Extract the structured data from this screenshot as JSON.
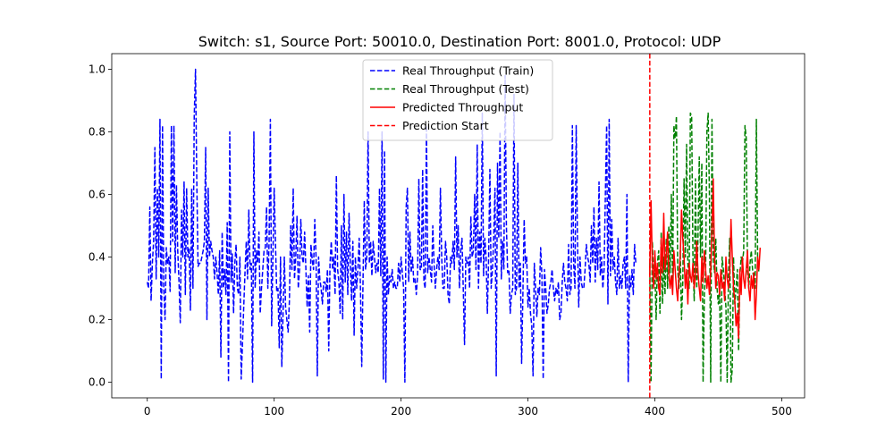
{
  "chart_data": {
    "type": "line",
    "title": "Switch: s1, Source Port: 50010.0, Destination Port: 8001.0, Protocol: UDP",
    "xlabel": "",
    "ylabel": "",
    "xlim": [
      -28,
      518
    ],
    "ylim": [
      -0.05,
      1.05
    ],
    "x_ticks": [
      0,
      100,
      200,
      300,
      400,
      500
    ],
    "y_ticks": [
      0.0,
      0.2,
      0.4,
      0.6,
      0.8,
      1.0
    ],
    "x_tick_labels": [
      "0",
      "100",
      "200",
      "300",
      "400",
      "500"
    ],
    "y_tick_labels": [
      "0.0",
      "0.2",
      "0.4",
      "0.6",
      "0.8",
      "1.0"
    ],
    "grid": false,
    "legend_position": "top-center",
    "vline": {
      "name": "Prediction Start",
      "x": 396,
      "color": "#ff0000",
      "dash": "dashed"
    },
    "series": [
      {
        "name": "Real Throughput (Train)",
        "color": "#0000ff",
        "dash": "dashed",
        "x_start": 0,
        "values": [
          0.32,
          0.3,
          0.56,
          0.26,
          0.38,
          0.45,
          0.75,
          0.33,
          0.62,
          0.4,
          0.84,
          0.01,
          0.82,
          0.3,
          0.2,
          0.43,
          0.38,
          0.4,
          0.29,
          0.82,
          0.45,
          0.82,
          0.35,
          0.63,
          0.42,
          0.32,
          0.19,
          0.55,
          0.4,
          0.64,
          0.28,
          0.62,
          0.4,
          0.43,
          0.23,
          0.62,
          0.3,
          0.85,
          1.0,
          0.65,
          0.37,
          0.38,
          0.38,
          0.4,
          0.42,
          0.45,
          0.75,
          0.2,
          0.62,
          0.4,
          0.45,
          0.42,
          0.4,
          0.33,
          0.4,
          0.35,
          0.28,
          0.42,
          0.08,
          0.48,
          0.3,
          0.36,
          0.28,
          0.51,
          0.0,
          0.8,
          0.32,
          0.41,
          0.22,
          0.38,
          0.44,
          0.3,
          0.28,
          0.4,
          0.01,
          0.12,
          0.24,
          0.35,
          0.45,
          0.33,
          0.55,
          0.36,
          0.38,
          0.0,
          0.8,
          0.3,
          0.42,
          0.38,
          0.48,
          0.22,
          0.3,
          0.36,
          0.42,
          0.43,
          0.56,
          0.3,
          0.45,
          0.84,
          0.18,
          0.4,
          0.62,
          0.45,
          0.29,
          0.3,
          0.11,
          0.4,
          0.05,
          0.22,
          0.4,
          0.24,
          0.2,
          0.16,
          0.26,
          0.5,
          0.36,
          0.62,
          0.33,
          0.4,
          0.53,
          0.3,
          0.36,
          0.52,
          0.4,
          0.38,
          0.48,
          0.36,
          0.24,
          0.34,
          0.16,
          0.44,
          0.39,
          0.36,
          0.52,
          0.4,
          0.02,
          0.4,
          0.33,
          0.3,
          0.25,
          0.32,
          0.32,
          0.29,
          0.36,
          0.1,
          0.38,
          0.45,
          0.36,
          0.4,
          0.28,
          0.66,
          0.36,
          0.32,
          0.22,
          0.5,
          0.2,
          0.6,
          0.32,
          0.48,
          0.28,
          0.54,
          0.38,
          0.26,
          0.45,
          0.15,
          0.4,
          0.3,
          0.36,
          0.46,
          0.3,
          0.05,
          0.32,
          0.58,
          0.36,
          0.4,
          0.8,
          0.38,
          0.45,
          0.34,
          0.45,
          0.4,
          0.35,
          0.38,
          0.35,
          0.62,
          0.34,
          0.8,
          0.01,
          0.74,
          0.0,
          0.4,
          0.28,
          0.34,
          0.32,
          0.36,
          0.3,
          0.32,
          0.3,
          0.3,
          0.38,
          0.32,
          0.4,
          0.35,
          0.3,
          0.0,
          0.56,
          0.62,
          0.32,
          0.48,
          0.35,
          0.4,
          0.32,
          0.33,
          0.28,
          0.34,
          0.65,
          0.36,
          0.36,
          0.68,
          0.32,
          0.3,
          0.82,
          0.35,
          0.4,
          0.36,
          0.32,
          0.5,
          0.38,
          0.3,
          0.36,
          0.4,
          0.36,
          0.62,
          0.4,
          0.3,
          0.3,
          0.45,
          0.4,
          0.28,
          0.25,
          0.4,
          0.38,
          0.45,
          0.36,
          0.72,
          0.4,
          0.5,
          0.3,
          0.42,
          0.46,
          0.3,
          0.12,
          0.4,
          0.38,
          0.4,
          0.3,
          0.53,
          0.4,
          0.42,
          0.6,
          0.36,
          0.76,
          0.3,
          0.48,
          0.38,
          0.86,
          0.34,
          0.46,
          0.4,
          0.22,
          0.4,
          0.68,
          0.3,
          0.36,
          0.46,
          0.62,
          0.02,
          0.7,
          0.46,
          0.8,
          0.33,
          0.45,
          0.36,
          0.98,
          0.5,
          0.35,
          0.36,
          0.22,
          0.28,
          0.3,
          0.92,
          0.28,
          0.3,
          0.7,
          0.3,
          0.38,
          0.06,
          0.28,
          0.52,
          0.38,
          0.4,
          0.24,
          0.3,
          0.22,
          0.18,
          0.02,
          0.38,
          0.3,
          0.21,
          0.3,
          0.28,
          0.43,
          0.34,
          0.01,
          0.36,
          0.3,
          0.22,
          0.25,
          0.3,
          0.32,
          0.36,
          0.3,
          0.26,
          0.3,
          0.28,
          0.32,
          0.2,
          0.22,
          0.32,
          0.38,
          0.32,
          0.3,
          0.26,
          0.44,
          0.28,
          0.3,
          0.82,
          0.38,
          0.3,
          0.82,
          0.46,
          0.24,
          0.4,
          0.32,
          0.3,
          0.3,
          0.36,
          0.44,
          0.4,
          0.38,
          0.32,
          0.5,
          0.38,
          0.56,
          0.32,
          0.46,
          0.36,
          0.64,
          0.34,
          0.4,
          0.3,
          0.36,
          0.6,
          0.82,
          0.25,
          0.84,
          0.34,
          0.52,
          0.36,
          0.4,
          0.32,
          0.28,
          0.46,
          0.3,
          0.34,
          0.3,
          0.38,
          0.4,
          0.3,
          0.6,
          0.0,
          0.34,
          0.3,
          0.36,
          0.28,
          0.44,
          0.38
        ]
      },
      {
        "name": "Real Throughput (Test)",
        "color": "#008000",
        "dash": "dashed",
        "x_start": 396,
        "values": [
          0.38,
          0.0,
          0.45,
          0.34,
          0.36,
          0.2,
          0.38,
          0.42,
          0.22,
          0.48,
          0.25,
          0.4,
          0.28,
          0.46,
          0.3,
          0.5,
          0.35,
          0.6,
          0.3,
          0.82,
          0.78,
          0.85,
          0.36,
          0.3,
          0.42,
          0.2,
          0.32,
          0.65,
          0.4,
          0.76,
          0.38,
          0.3,
          0.86,
          0.85,
          0.4,
          0.26,
          0.65,
          0.3,
          0.46,
          0.72,
          0.4,
          0.7,
          0.0,
          0.28,
          0.36,
          0.8,
          0.86,
          0.6,
          0.0,
          0.84,
          0.4,
          0.35,
          0.46,
          0.3,
          0.25,
          0.3,
          0.0,
          0.4,
          0.36,
          0.3,
          0.24,
          0.0,
          0.34,
          0.46,
          0.0,
          0.04,
          0.4,
          0.25,
          0.3,
          0.36,
          0.1,
          0.34,
          0.4,
          0.38,
          0.42,
          0.82,
          0.78,
          0.36,
          0.3,
          0.38,
          0.42,
          0.36,
          0.33,
          0.3,
          0.84,
          0.4,
          0.35
        ]
      },
      {
        "name": "Predicted Throughput",
        "color": "#ff0000",
        "dash": "solid",
        "x_start": 396,
        "values": [
          0.34,
          0.58,
          0.38,
          0.3,
          0.42,
          0.33,
          0.38,
          0.3,
          0.28,
          0.46,
          0.35,
          0.54,
          0.36,
          0.4,
          0.48,
          0.35,
          0.3,
          0.34,
          0.28,
          0.42,
          0.36,
          0.3,
          0.26,
          0.35,
          0.4,
          0.55,
          0.46,
          0.4,
          0.3,
          0.36,
          0.25,
          0.38,
          0.34,
          0.32,
          0.38,
          0.3,
          0.34,
          0.45,
          0.35,
          0.3,
          0.26,
          0.4,
          0.32,
          0.42,
          0.36,
          0.3,
          0.34,
          0.28,
          0.36,
          0.48,
          0.65,
          0.4,
          0.3,
          0.35,
          0.34,
          0.28,
          0.36,
          0.3,
          0.32,
          0.26,
          0.4,
          0.33,
          0.3,
          0.35,
          0.52,
          0.4,
          0.3,
          0.26,
          0.18,
          0.22,
          0.14,
          0.36,
          0.28,
          0.4,
          0.33,
          0.3,
          0.36,
          0.42,
          0.3,
          0.26,
          0.34,
          0.3,
          0.35,
          0.2,
          0.28,
          0.4,
          0.36,
          0.43
        ]
      }
    ]
  }
}
